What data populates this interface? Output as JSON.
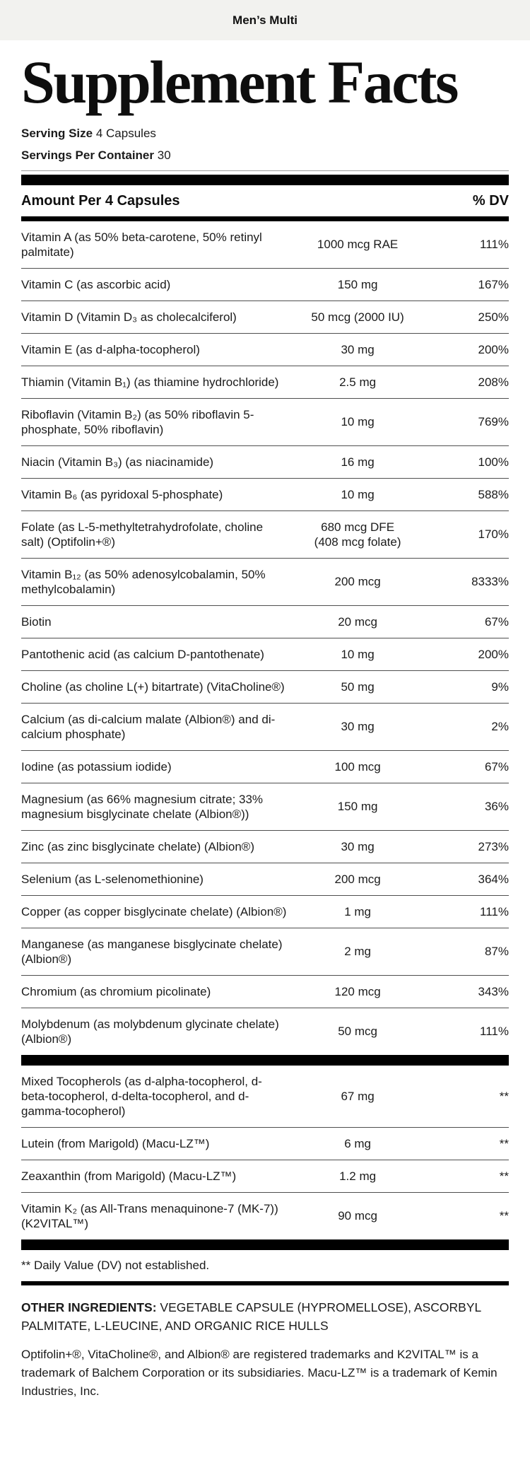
{
  "header": {
    "product_name": "Men’s Multi"
  },
  "title": "Supplement Facts",
  "serving": {
    "size_label": "Serving Size",
    "size_value": "4 Capsules",
    "container_label": "Servings Per Container",
    "container_value": "30"
  },
  "table": {
    "amount_header": "Amount Per 4 Capsules",
    "dv_header": "% DV",
    "rows": [
      {
        "name": "Vitamin A (as 50% beta-carotene, 50% retinyl palmitate)",
        "amount": "1000 mcg RAE",
        "dv": "111%"
      },
      {
        "name": "Vitamin C (as ascorbic acid)",
        "amount": "150 mg",
        "dv": "167%"
      },
      {
        "name": "Vitamin D (Vitamin D₃ as cholecalciferol)",
        "amount": "50 mcg (2000 IU)",
        "dv": "250%"
      },
      {
        "name": "Vitamin E (as d-alpha-tocopherol)",
        "amount": "30 mg",
        "dv": "200%"
      },
      {
        "name": "Thiamin (Vitamin B₁) (as thiamine hydrochloride)",
        "amount": "2.5 mg",
        "dv": "208%"
      },
      {
        "name": "Riboflavin (Vitamin B₂) (as 50% riboflavin 5-phosphate, 50% riboflavin)",
        "amount": "10 mg",
        "dv": "769%"
      },
      {
        "name": "Niacin (Vitamin B₃) (as niacinamide)",
        "amount": "16 mg",
        "dv": "100%"
      },
      {
        "name": "Vitamin B₆ (as pyridoxal 5-phosphate)",
        "amount": "10 mg",
        "dv": "588%"
      },
      {
        "name": "Folate (as L-5-methyltetrahydrofolate, choline salt) (Optifolin+®)",
        "amount": "680 mcg DFE\n(408 mcg folate)",
        "dv": "170%"
      },
      {
        "name": "Vitamin B₁₂ (as 50% adenosylcobalamin, 50% methylcobalamin)",
        "amount": "200 mcg",
        "dv": "8333%"
      },
      {
        "name": "Biotin",
        "amount": "20 mcg",
        "dv": "67%"
      },
      {
        "name": "Pantothenic acid (as calcium D-pantothenate)",
        "amount": "10 mg",
        "dv": "200%"
      },
      {
        "name": "Choline (as choline L(+) bitartrate) (VitaCholine®)",
        "amount": "50 mg",
        "dv": "9%"
      },
      {
        "name": "Calcium (as di-calcium malate (Albion®) and di-calcium phosphate)",
        "amount": "30 mg",
        "dv": "2%"
      },
      {
        "name": "Iodine (as potassium iodide)",
        "amount": "100 mcg",
        "dv": "67%"
      },
      {
        "name": "Magnesium (as 66% magnesium citrate; 33% magnesium bisglycinate chelate (Albion®))",
        "amount": "150 mg",
        "dv": "36%"
      },
      {
        "name": "Zinc (as zinc bisglycinate chelate) (Albion®)",
        "amount": "30 mg",
        "dv": "273%"
      },
      {
        "name": "Selenium (as L-selenomethionine)",
        "amount": "200 mcg",
        "dv": "364%"
      },
      {
        "name": "Copper (as copper bisglycinate chelate) (Albion®)",
        "amount": "1 mg",
        "dv": "111%"
      },
      {
        "name": "Manganese (as manganese bisglycinate chelate) (Albion®)",
        "amount": "2 mg",
        "dv": "87%"
      },
      {
        "name": "Chromium (as chromium picolinate)",
        "amount": "120 mcg",
        "dv": "343%"
      },
      {
        "name": "Molybdenum (as molybdenum glycinate chelate) (Albion®)",
        "amount": "50 mcg",
        "dv": "111%"
      }
    ],
    "no_dv_rows": [
      {
        "name": "Mixed Tocopherols (as d-alpha-tocopherol, d-beta-tocopherol, d-delta-tocopherol, and d-gamma-tocopherol)",
        "amount": "67 mg",
        "dv": "**"
      },
      {
        "name": "Lutein (from Marigold) (Macu-LZ™)",
        "amount": "6 mg",
        "dv": "**"
      },
      {
        "name": "Zeaxanthin (from Marigold) (Macu-LZ™)",
        "amount": "1.2 mg",
        "dv": "**"
      },
      {
        "name": "Vitamin K₂ (as All-Trans menaquinone-7 (MK-7)) (K2VITAL™)",
        "amount": "90 mcg",
        "dv": "**"
      }
    ],
    "dv_note": "** Daily Value (DV) not established."
  },
  "footer": {
    "other_ingredients_label": "OTHER INGREDIENTS:",
    "other_ingredients_value": "VEGETABLE CAPSULE (HYPROMELLOSE), ASCORBYL PALMITATE, L-LEUCINE, AND ORGANIC RICE HULLS",
    "trademark_note": "Optifolin+®, VitaCholine®, and Albion® are registered trademarks and K2VITAL™ is a trademark of Balchem Corporation or its subsidiaries. Macu-LZ™ is a trademark of Kemin Industries, Inc."
  },
  "colors": {
    "topbar_bg": "#f2f2ef",
    "text": "#1b1b1b",
    "section_bar": "#000000",
    "row_divider": "#4f4f4f"
  }
}
